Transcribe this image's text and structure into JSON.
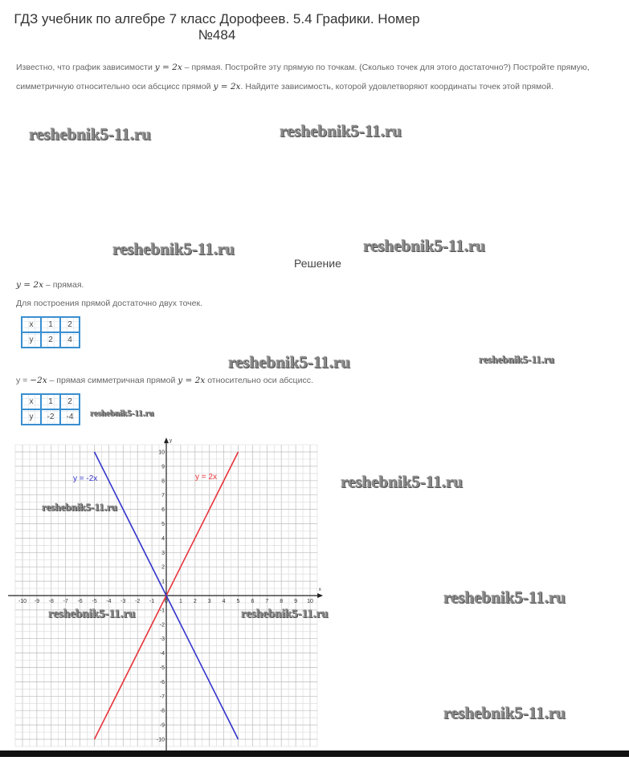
{
  "title": "ГДЗ учебник по алгебре 7 класс Дорофеев. 5.4 Графики. Номер №484",
  "task": {
    "line1_a": "Известно, что график зависимости ",
    "formula1": "y = 2x",
    "line1_b": " – прямая. Постройте эту прямую по точкам. (Сколько точек для этого достаточно?) Постройте прямую,",
    "line2_a": "симметричную относительно оси абсцисс прямой ",
    "formula2": "y = 2x",
    "line2_b": ". Найдите зависимость, которой удовлетворяют координаты точек этой прямой."
  },
  "solution_heading": "Решение",
  "solution": {
    "s1_formula": "y = 2x",
    "s1_text": " – прямая.",
    "s2": "Для построения прямой достаточно двух точек.",
    "table1": {
      "x": [
        "x",
        "1",
        "2"
      ],
      "y": [
        "y",
        "2",
        "4"
      ]
    },
    "s3_a": "y = ",
    "s3_formula": "−2x",
    "s3_b": " – прямая симметричная прямой ",
    "s3_formula2": "y = 2x",
    "s3_c": " относительно оси абсцисс.",
    "table2": {
      "x": [
        "x",
        "1",
        "2"
      ],
      "y": [
        "y",
        "-2",
        "-4"
      ]
    }
  },
  "watermark": "reshebnik5-11.ru",
  "chart_data": {
    "type": "line",
    "xlim": [
      -10,
      10
    ],
    "ylim": [
      -10,
      10
    ],
    "xlabel": "x",
    "ylabel": "y",
    "grid": true,
    "xticks": [
      -10,
      -9,
      -8,
      -7,
      -6,
      -5,
      -4,
      -3,
      -2,
      -1,
      0,
      1,
      2,
      3,
      4,
      5,
      6,
      7,
      8,
      9,
      10
    ],
    "yticks": [
      -10,
      -9,
      -8,
      -7,
      -6,
      -5,
      -4,
      -3,
      -2,
      -1,
      1,
      2,
      3,
      4,
      5,
      6,
      7,
      8,
      9,
      10
    ],
    "series": [
      {
        "name": "y = 2x",
        "color": "#e8333a",
        "x": [
          -5,
          5
        ],
        "y": [
          -10,
          10
        ]
      },
      {
        "name": "y = -2x",
        "color": "#3333cc",
        "x": [
          -5,
          5
        ],
        "y": [
          10,
          -10
        ]
      }
    ]
  }
}
